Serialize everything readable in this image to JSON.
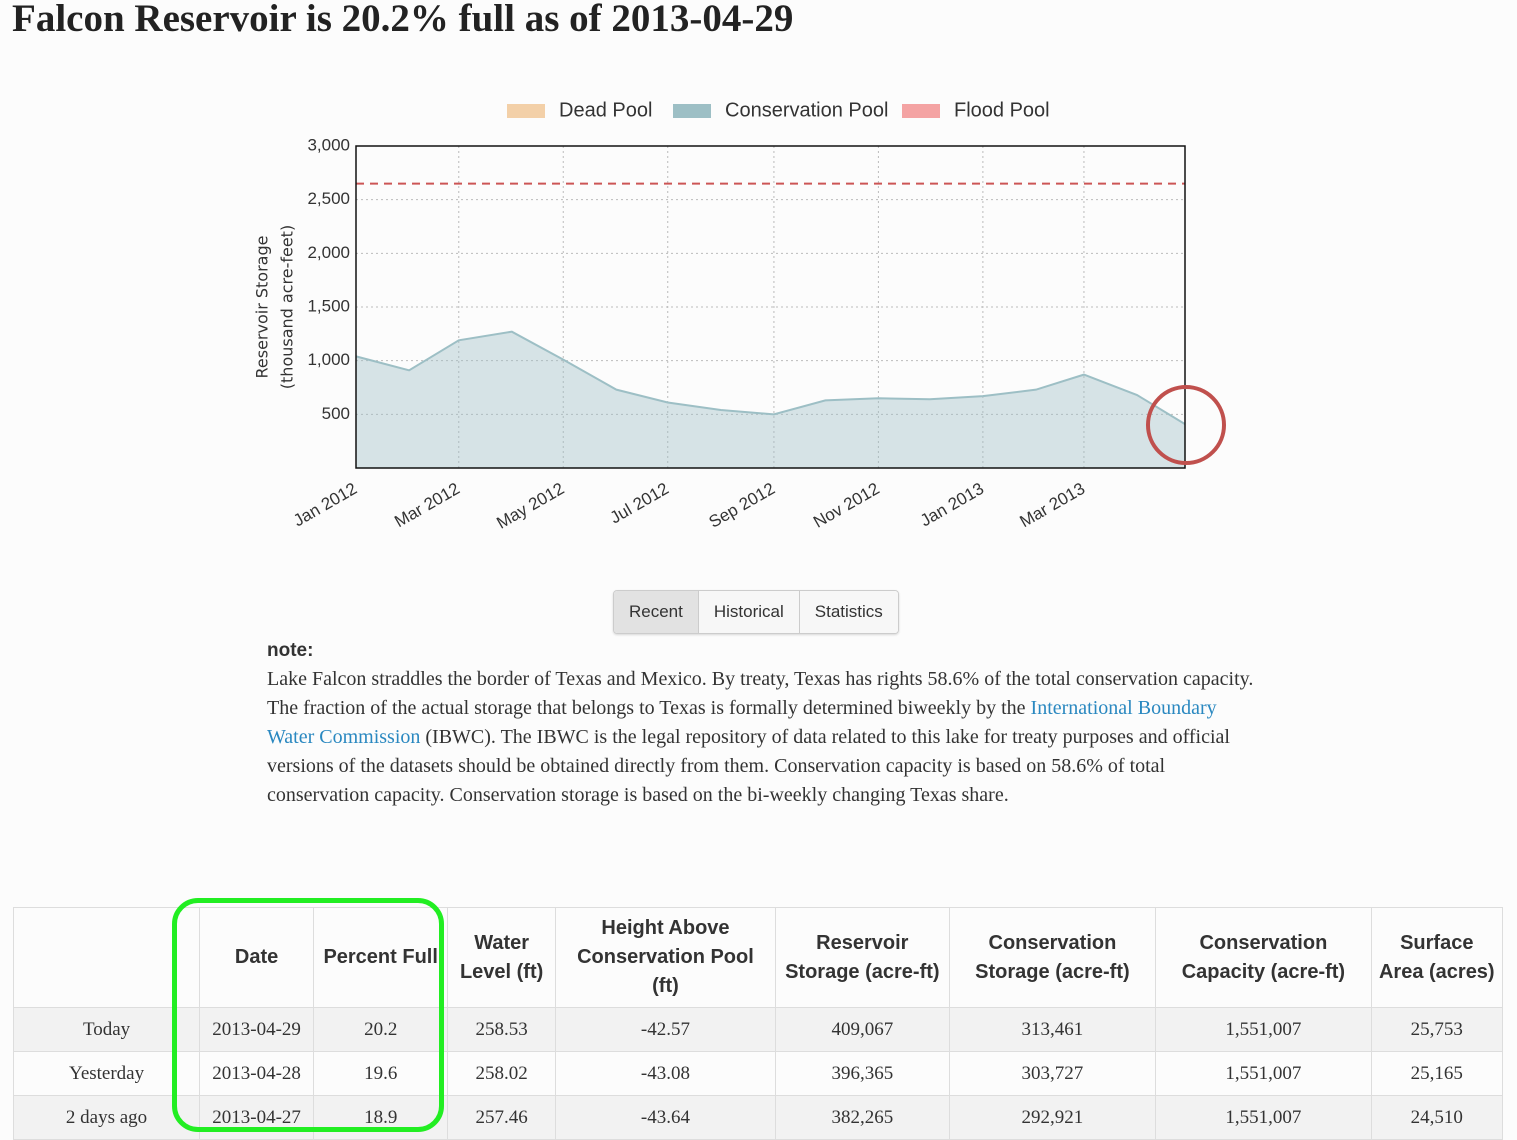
{
  "header": {
    "title": "Falcon Reservoir is 20.2% full as of 2013-04-29"
  },
  "chart_data": {
    "type": "area",
    "ylabel": [
      "Reservoir Storage",
      "(thousand acre-feet)"
    ],
    "x": [
      "2012-01",
      "2012-02",
      "2012-03",
      "2012-04",
      "2012-05",
      "2012-06",
      "2012-07",
      "2012-08",
      "2012-09",
      "2012-10",
      "2012-11",
      "2012-12",
      "2013-01",
      "2013-02",
      "2013-03",
      "2013-04",
      "2013-04-29"
    ],
    "series": [
      {
        "name": "Dead Pool",
        "color": "#f3d0a8"
      },
      {
        "name": "Conservation Pool",
        "color": "#9dbfc5",
        "values": [
          1040,
          910,
          1190,
          1270,
          1010,
          730,
          610,
          540,
          500,
          630,
          650,
          640,
          670,
          730,
          870,
          680,
          409
        ]
      },
      {
        "name": "Flood Pool",
        "color": "#f4a3a3",
        "level": 2650
      }
    ],
    "xlim": [
      "2012-01",
      "2013-04-29"
    ],
    "xticks": [
      {
        "value": "2012-01",
        "label": "Jan 2012"
      },
      {
        "value": "2012-03",
        "label": "Mar 2012"
      },
      {
        "value": "2012-05",
        "label": "May 2012"
      },
      {
        "value": "2012-07",
        "label": "Jul 2012"
      },
      {
        "value": "2012-09",
        "label": "Sep 2012"
      },
      {
        "value": "2012-11",
        "label": "Nov 2012"
      },
      {
        "value": "2013-01",
        "label": "Jan 2013"
      },
      {
        "value": "2013-03",
        "label": "Mar 2013"
      }
    ],
    "ylim": [
      0,
      3000
    ],
    "yticks": [
      500,
      {
        "value": 1000,
        "label": "1,000"
      },
      {
        "value": 1500,
        "label": "1,500"
      },
      {
        "value": 2000,
        "label": "2,000"
      },
      {
        "value": 2500,
        "label": "2,500"
      },
      {
        "value": 3000,
        "label": "3,000"
      }
    ],
    "grid": true
  },
  "tabs": [
    "Recent",
    "Historical",
    "Statistics"
  ],
  "note": {
    "heading": "note:",
    "text_before": "Lake Falcon straddles the border of Texas and Mexico. By treaty, Texas has rights 58.6% of the total conservation capacity. The fraction of the actual storage that belongs to Texas is formally determined biweekly by the ",
    "link": "International Boundary Water Commission",
    "text_after": " (IBWC). The IBWC is the legal repository of data related to this lake for treaty purposes and official versions of the datasets should be obtained directly from them. Conservation capacity is based on 58.6% of total conservation capacity. Conservation storage is based on the bi-weekly changing Texas share."
  },
  "table": {
    "headers": [
      "Date",
      "Percent Full",
      "Water Level (ft)",
      "Height Above Conservation Pool (ft)",
      "Reservoir Storage (acre-ft)",
      "Conservation Storage (acre-ft)",
      "Conservation Capacity (acre-ft)",
      "Surface Area (acres)"
    ],
    "rows": [
      [
        "Today",
        "2013-04-29",
        "20.2",
        "258.53",
        "-42.57",
        "409,067",
        "313,461",
        "1,551,007",
        "25,753"
      ],
      [
        "Yesterday",
        "2013-04-28",
        "19.6",
        "258.02",
        "-43.08",
        "396,365",
        "303,727",
        "1,551,007",
        "25,165"
      ],
      [
        "2 days ago",
        "2013-04-27",
        "18.9",
        "257.46",
        "-43.64",
        "382,265",
        "292,921",
        "1,551,007",
        "24,510"
      ]
    ]
  }
}
